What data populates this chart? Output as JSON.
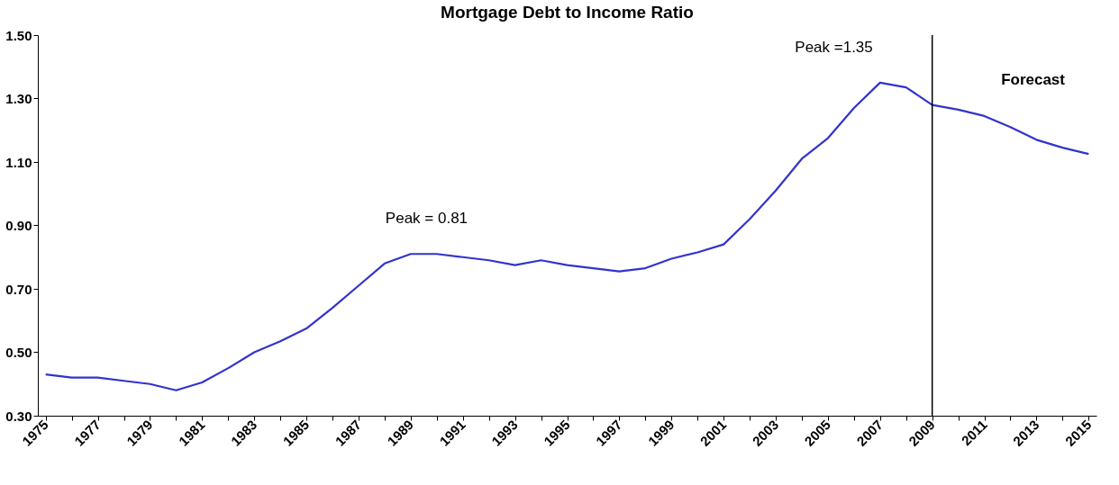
{
  "chart_data": {
    "type": "line",
    "title": "Mortgage Debt to Income Ratio",
    "categories": [
      "1975",
      null,
      "1977",
      null,
      "1979",
      null,
      "1981",
      null,
      "1983",
      null,
      "1985",
      null,
      "1987",
      null,
      "1989",
      null,
      "1991",
      null,
      "1993",
      null,
      "1995",
      null,
      "1997",
      null,
      "1999",
      null,
      "2001",
      null,
      "2003",
      null,
      "2005",
      null,
      "2007",
      null,
      "2009",
      null,
      "2011",
      null,
      "2013",
      null,
      "2015"
    ],
    "series": [
      {
        "color": "#3333cc",
        "values": [
          0.43,
          0.42,
          0.42,
          0.41,
          0.4,
          0.38,
          0.405,
          0.45,
          0.5,
          0.535,
          0.575,
          0.64,
          0.71,
          0.78,
          0.81,
          0.81,
          0.8,
          0.79,
          0.775,
          0.79,
          0.775,
          0.765,
          0.755,
          0.765,
          0.795,
          0.815,
          0.84,
          0.92,
          1.01,
          1.11,
          1.175,
          1.27,
          1.35,
          1.335,
          1.28,
          1.265,
          1.245,
          1.21,
          1.17,
          1.145,
          1.125
        ]
      }
    ],
    "ylim": [
      0.3,
      1.5
    ],
    "yticks": [
      {
        "value": 0.3,
        "label": "0.30"
      },
      {
        "value": 0.5,
        "label": "0.50"
      },
      {
        "value": 0.7,
        "label": "0.70"
      },
      {
        "value": 0.9,
        "label": "0.90"
      },
      {
        "value": 1.1,
        "label": "1.10"
      },
      {
        "value": 1.3,
        "label": "1.30"
      },
      {
        "value": 1.5,
        "label": "1.50"
      }
    ],
    "grid": false,
    "marker": "none",
    "line_style": "solid",
    "ref_lines": [
      {
        "axis": "x",
        "value": "2009",
        "color": "#000000"
      }
    ],
    "annotations": [
      {
        "text": "Peak = 0.81",
        "x": "1989",
        "y": 0.81
      },
      {
        "text": "Peak =1.35",
        "x": "2007",
        "y": 1.35
      },
      "Forecast"
    ]
  }
}
